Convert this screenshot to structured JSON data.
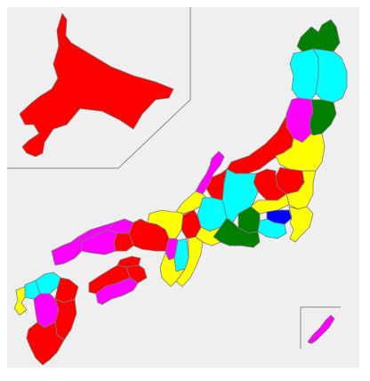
{
  "map": {
    "description_kind": "prefecture choropleth",
    "background_color": "#efefef",
    "border_color": "#7a7a7a",
    "palette": {
      "red": "#ff0000",
      "green": "#007f00",
      "cyan": "#00ffff",
      "yellow": "#ffff00",
      "magenta": "#ff00ff",
      "blue": "#0000ff"
    },
    "regions": [
      {
        "id": "hokkaido",
        "color": "red"
      },
      {
        "id": "aomori",
        "color": "green"
      },
      {
        "id": "akita",
        "color": "cyan"
      },
      {
        "id": "iwate",
        "color": "cyan"
      },
      {
        "id": "yamagata",
        "color": "magenta"
      },
      {
        "id": "miyagi",
        "color": "green"
      },
      {
        "id": "niigata",
        "color": "red"
      },
      {
        "id": "fukushima",
        "color": "yellow"
      },
      {
        "id": "tochigi",
        "color": "red"
      },
      {
        "id": "gunma",
        "color": "red"
      },
      {
        "id": "ibaraki",
        "color": "yellow"
      },
      {
        "id": "saitama",
        "color": "yellow"
      },
      {
        "id": "tokyo",
        "color": "blue"
      },
      {
        "id": "chiba",
        "color": "yellow"
      },
      {
        "id": "kanagawa",
        "color": "cyan"
      },
      {
        "id": "yamanashi",
        "color": "green"
      },
      {
        "id": "nagano",
        "color": "cyan"
      },
      {
        "id": "toyama",
        "color": "red"
      },
      {
        "id": "ishikawa",
        "color": "magenta"
      },
      {
        "id": "fukui",
        "color": "yellow"
      },
      {
        "id": "gifu",
        "color": "cyan"
      },
      {
        "id": "shizuoka",
        "color": "green"
      },
      {
        "id": "aichi",
        "color": "yellow"
      },
      {
        "id": "shiga",
        "color": "red"
      },
      {
        "id": "mie",
        "color": "yellow"
      },
      {
        "id": "kyoto",
        "color": "yellow"
      },
      {
        "id": "nara",
        "color": "cyan"
      },
      {
        "id": "osaka",
        "color": "magenta"
      },
      {
        "id": "hyogo",
        "color": "red"
      },
      {
        "id": "wakayama",
        "color": "yellow"
      },
      {
        "id": "tottori",
        "color": "magenta"
      },
      {
        "id": "okayama",
        "color": "red"
      },
      {
        "id": "shimane",
        "color": "magenta"
      },
      {
        "id": "hiroshima",
        "color": "magenta"
      },
      {
        "id": "yamaguchi",
        "color": "magenta"
      },
      {
        "id": "kagawa",
        "color": "red"
      },
      {
        "id": "tokushima",
        "color": "red"
      },
      {
        "id": "ehime",
        "color": "red"
      },
      {
        "id": "kochi",
        "color": "magenta"
      },
      {
        "id": "fukuoka",
        "color": "cyan"
      },
      {
        "id": "saga",
        "color": "cyan"
      },
      {
        "id": "nagasaki",
        "color": "yellow"
      },
      {
        "id": "oita",
        "color": "red"
      },
      {
        "id": "kumamoto",
        "color": "magenta"
      },
      {
        "id": "miyazaki",
        "color": "red"
      },
      {
        "id": "kagoshima",
        "color": "red"
      },
      {
        "id": "okinawa",
        "color": "magenta"
      }
    ]
  }
}
